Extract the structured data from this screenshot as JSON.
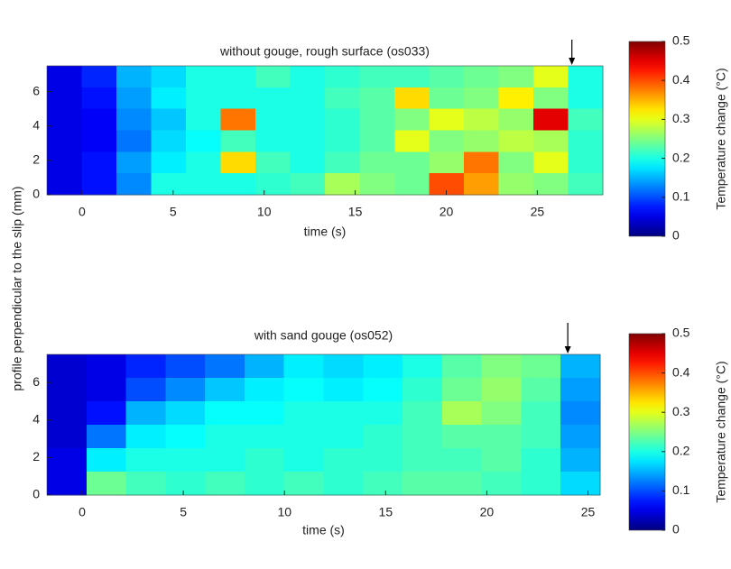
{
  "ylabel": "profile perpendicular to the slip (mm)",
  "chart_data": [
    {
      "type": "heatmap",
      "title": "without gouge, rough surface (os033)",
      "xlabel": "time (s)",
      "colorbar_label": "Temperature change (°C)",
      "colormap": "jet",
      "xlim": [
        -1.93,
        28.6
      ],
      "xticks": [
        0,
        5,
        10,
        15,
        20,
        25
      ],
      "ylim": [
        0,
        7.5
      ],
      "yticks": [
        0,
        2,
        4,
        6
      ],
      "clim": [
        0,
        0.5
      ],
      "cticks": [
        0,
        0.1,
        0.2,
        0.3,
        0.4,
        0.5
      ],
      "arrow_x": 26.9,
      "z": [
        [
          0.05,
          0.08,
          0.15,
          0.17,
          0.2,
          0.2,
          0.22,
          0.2,
          0.21,
          0.22,
          0.22,
          0.23,
          0.24,
          0.25,
          0.3,
          0.2
        ],
        [
          0.05,
          0.07,
          0.14,
          0.18,
          0.2,
          0.2,
          0.2,
          0.2,
          0.22,
          0.23,
          0.33,
          0.24,
          0.25,
          0.32,
          0.25,
          0.2
        ],
        [
          0.05,
          0.06,
          0.13,
          0.16,
          0.2,
          0.38,
          0.2,
          0.2,
          0.21,
          0.23,
          0.25,
          0.3,
          0.28,
          0.26,
          0.45,
          0.22
        ],
        [
          0.05,
          0.06,
          0.12,
          0.17,
          0.19,
          0.22,
          0.2,
          0.2,
          0.21,
          0.23,
          0.3,
          0.25,
          0.26,
          0.28,
          0.27,
          0.21
        ],
        [
          0.05,
          0.07,
          0.14,
          0.18,
          0.2,
          0.33,
          0.22,
          0.2,
          0.22,
          0.24,
          0.24,
          0.26,
          0.38,
          0.25,
          0.3,
          0.21
        ],
        [
          0.05,
          0.07,
          0.13,
          0.2,
          0.2,
          0.2,
          0.21,
          0.22,
          0.27,
          0.25,
          0.24,
          0.4,
          0.36,
          0.26,
          0.25,
          0.22
        ]
      ]
    },
    {
      "type": "heatmap",
      "title": "with sand gouge (os052)",
      "xlabel": "time (s)",
      "colorbar_label": "Temperature change (°C)",
      "colormap": "jet",
      "xlim": [
        -1.74,
        25.6
      ],
      "xticks": [
        0,
        5,
        10,
        15,
        20,
        25
      ],
      "ylim": [
        0,
        7.5
      ],
      "yticks": [
        0,
        2,
        4,
        6
      ],
      "clim": [
        0,
        0.5
      ],
      "cticks": [
        0,
        0.1,
        0.2,
        0.3,
        0.4,
        0.5
      ],
      "arrow_x": 24.0,
      "z": [
        [
          0.04,
          0.05,
          0.08,
          0.1,
          0.12,
          0.15,
          0.18,
          0.17,
          0.18,
          0.2,
          0.23,
          0.25,
          0.24,
          0.15
        ],
        [
          0.04,
          0.05,
          0.1,
          0.13,
          0.16,
          0.18,
          0.19,
          0.18,
          0.19,
          0.21,
          0.24,
          0.26,
          0.23,
          0.14
        ],
        [
          0.04,
          0.07,
          0.15,
          0.17,
          0.19,
          0.19,
          0.2,
          0.2,
          0.2,
          0.22,
          0.27,
          0.25,
          0.22,
          0.13
        ],
        [
          0.04,
          0.12,
          0.18,
          0.19,
          0.2,
          0.2,
          0.2,
          0.2,
          0.21,
          0.22,
          0.23,
          0.23,
          0.22,
          0.14
        ],
        [
          0.05,
          0.18,
          0.2,
          0.2,
          0.2,
          0.21,
          0.2,
          0.21,
          0.21,
          0.22,
          0.22,
          0.23,
          0.21,
          0.15
        ],
        [
          0.05,
          0.24,
          0.22,
          0.21,
          0.22,
          0.21,
          0.22,
          0.21,
          0.22,
          0.23,
          0.23,
          0.22,
          0.21,
          0.17
        ]
      ]
    }
  ]
}
